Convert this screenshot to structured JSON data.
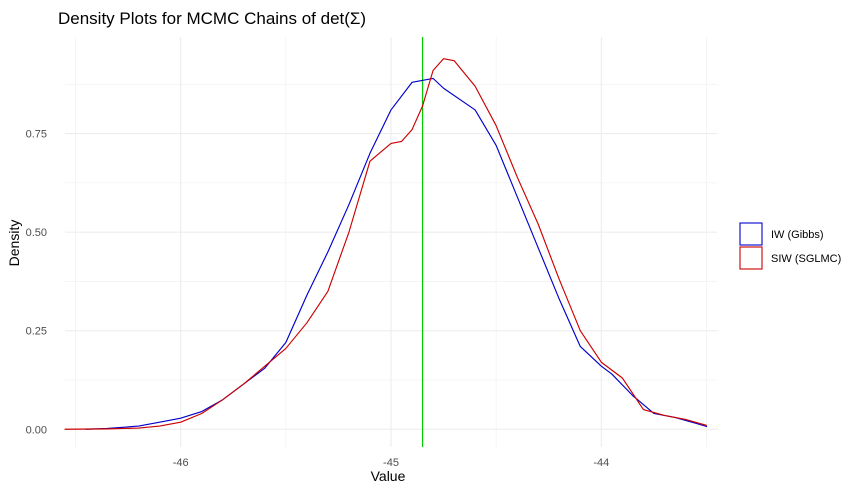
{
  "chart_data": {
    "type": "line",
    "title": "Density Plots for MCMC Chains of det(Σ)",
    "xlabel": "Value",
    "ylabel": "Density",
    "xlim": [
      -46.55,
      -43.45
    ],
    "ylim": [
      -0.045,
      0.995
    ],
    "x_ticks": [
      -46,
      -45,
      -44
    ],
    "y_ticks": [
      0.0,
      0.25,
      0.5,
      0.75
    ],
    "y_tick_labels": [
      "0.00",
      "0.25",
      "0.50",
      "0.75"
    ],
    "grid": true,
    "legend_position": "right",
    "vline": {
      "x": -44.85,
      "color": "#00cc00"
    },
    "series": [
      {
        "name": "IW (Gibbs)",
        "color": "#0000cc",
        "points": [
          [
            -46.45,
            0.0
          ],
          [
            -46.35,
            0.002
          ],
          [
            -46.2,
            0.008
          ],
          [
            -46.1,
            0.018
          ],
          [
            -46.0,
            0.028
          ],
          [
            -45.9,
            0.045
          ],
          [
            -45.8,
            0.075
          ],
          [
            -45.7,
            0.115
          ],
          [
            -45.6,
            0.155
          ],
          [
            -45.5,
            0.22
          ],
          [
            -45.4,
            0.34
          ],
          [
            -45.3,
            0.45
          ],
          [
            -45.2,
            0.57
          ],
          [
            -45.1,
            0.7
          ],
          [
            -45.0,
            0.81
          ],
          [
            -44.9,
            0.88
          ],
          [
            -44.8,
            0.89
          ],
          [
            -44.75,
            0.865
          ],
          [
            -44.6,
            0.81
          ],
          [
            -44.5,
            0.72
          ],
          [
            -44.4,
            0.59
          ],
          [
            -44.3,
            0.46
          ],
          [
            -44.2,
            0.33
          ],
          [
            -44.1,
            0.21
          ],
          [
            -44.0,
            0.16
          ],
          [
            -43.95,
            0.14
          ],
          [
            -43.85,
            0.085
          ],
          [
            -43.75,
            0.04
          ],
          [
            -43.65,
            0.03
          ],
          [
            -43.55,
            0.015
          ],
          [
            -43.5,
            0.007
          ]
        ]
      },
      {
        "name": "SIW (SGLMC)",
        "color": "#cc0000",
        "points": [
          [
            -46.55,
            0.0
          ],
          [
            -46.35,
            0.001
          ],
          [
            -46.2,
            0.003
          ],
          [
            -46.1,
            0.008
          ],
          [
            -46.0,
            0.018
          ],
          [
            -45.9,
            0.04
          ],
          [
            -45.8,
            0.075
          ],
          [
            -45.7,
            0.115
          ],
          [
            -45.6,
            0.16
          ],
          [
            -45.5,
            0.205
          ],
          [
            -45.4,
            0.27
          ],
          [
            -45.3,
            0.35
          ],
          [
            -45.2,
            0.5
          ],
          [
            -45.1,
            0.68
          ],
          [
            -45.0,
            0.725
          ],
          [
            -44.95,
            0.73
          ],
          [
            -44.9,
            0.76
          ],
          [
            -44.85,
            0.82
          ],
          [
            -44.8,
            0.91
          ],
          [
            -44.75,
            0.94
          ],
          [
            -44.7,
            0.935
          ],
          [
            -44.6,
            0.87
          ],
          [
            -44.5,
            0.77
          ],
          [
            -44.4,
            0.64
          ],
          [
            -44.3,
            0.52
          ],
          [
            -44.2,
            0.38
          ],
          [
            -44.1,
            0.25
          ],
          [
            -44.0,
            0.17
          ],
          [
            -43.9,
            0.13
          ],
          [
            -43.8,
            0.05
          ],
          [
            -43.7,
            0.035
          ],
          [
            -43.6,
            0.025
          ],
          [
            -43.5,
            0.01
          ]
        ]
      }
    ]
  }
}
